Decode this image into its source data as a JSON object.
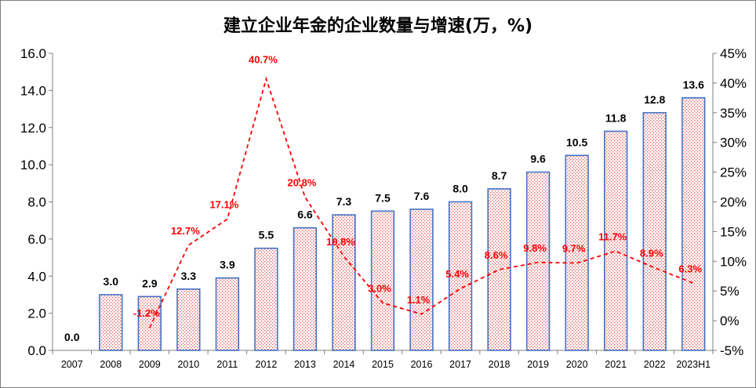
{
  "chart_data": {
    "type": "bar",
    "title": "建立企业年金的企业数量与增速(万，%)",
    "categories": [
      "2007",
      "2008",
      "2009",
      "2010",
      "2011",
      "2012",
      "2013",
      "2014",
      "2015",
      "2016",
      "2017",
      "2018",
      "2019",
      "2020",
      "2021",
      "2022",
      "2023H1"
    ],
    "series": [
      {
        "type": "bar",
        "axis": "left",
        "values": [
          0.0,
          3.0,
          2.9,
          3.3,
          3.9,
          5.5,
          6.6,
          7.3,
          7.5,
          7.6,
          8.0,
          8.7,
          9.6,
          10.5,
          11.8,
          12.8,
          13.6
        ],
        "labels": [
          "0.0",
          "3.0",
          "2.9",
          "3.3",
          "3.9",
          "5.5",
          "6.6",
          "7.3",
          "7.5",
          "7.6",
          "8.0",
          "8.7",
          "9.6",
          "10.5",
          "11.8",
          "12.8",
          "13.6"
        ],
        "color": "#4472c4",
        "fill": "dotted-red"
      },
      {
        "type": "line",
        "axis": "right",
        "style": "dashed",
        "color": "#ff0000",
        "values": [
          null,
          null,
          -1.2,
          12.7,
          17.1,
          40.7,
          20.8,
          10.8,
          3.0,
          1.1,
          5.4,
          8.6,
          9.8,
          9.7,
          11.7,
          8.9,
          6.3
        ],
        "labels": [
          null,
          null,
          "-1.2%",
          "12.7%",
          "17.1%",
          "40.7%",
          "20.8%",
          "10.8%",
          "3.0%",
          "1.1%",
          "5.4%",
          "8.6%",
          "9.8%",
          "9.7%",
          "11.7%",
          "8.9%",
          "6.3%"
        ]
      }
    ],
    "left_axis": {
      "min": 0,
      "max": 16,
      "step": 2,
      "ticks": [
        "0.0",
        "2.0",
        "4.0",
        "6.0",
        "8.0",
        "10.0",
        "12.0",
        "14.0",
        "16.0"
      ]
    },
    "right_axis": {
      "min": -5,
      "max": 45,
      "step": 5,
      "ticks": [
        "-5%",
        "0%",
        "5%",
        "10%",
        "15%",
        "20%",
        "25%",
        "30%",
        "35%",
        "40%",
        "45%"
      ]
    },
    "grid": false,
    "legend": "none"
  }
}
